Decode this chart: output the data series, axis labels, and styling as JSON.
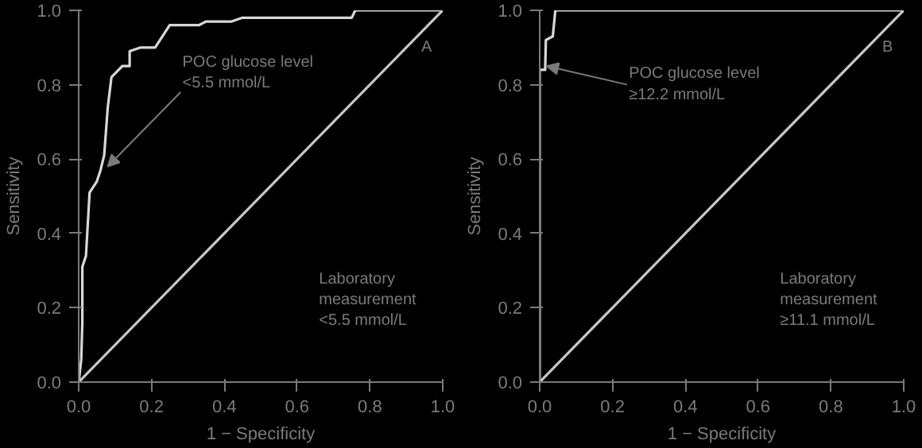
{
  "chart_data": [
    {
      "type": "line",
      "xlabel": "1 − Specificity",
      "ylabel": "Sensitivity",
      "xlim": [
        0,
        1
      ],
      "ylim": [
        0,
        1
      ],
      "xticks": [
        {
          "value": 0,
          "label": "0.0"
        },
        {
          "value": 0.2,
          "label": "0.2"
        },
        {
          "value": 0.4,
          "label": "0.4"
        },
        {
          "value": 0.6,
          "label": "0.6"
        },
        {
          "value": 0.8,
          "label": "0.8"
        },
        {
          "value": 1,
          "label": "1.0"
        }
      ],
      "yticks": [
        {
          "value": 0,
          "label": "0.0"
        },
        {
          "value": 0.2,
          "label": "0.2"
        },
        {
          "value": 0.4,
          "label": "0.4"
        },
        {
          "value": 0.6,
          "label": "0.6"
        },
        {
          "value": 0.8,
          "label": "0.8"
        },
        {
          "value": 1,
          "label": "1.0"
        }
      ],
      "grid": false,
      "marker": "none",
      "line_style": "solid",
      "series": [
        {
          "color": "#d8d8d8",
          "x": [
            0,
            0.007,
            0.01,
            0.01,
            0.02,
            0.03,
            0.05,
            0.06,
            0.07,
            0.08,
            0.09,
            0.12,
            0.14,
            0.14,
            0.17,
            0.21,
            0.25,
            0.33,
            0.35,
            0.42,
            0.45,
            0.75,
            0.76,
            1
          ],
          "values": [
            0,
            0.06,
            0.16,
            0.31,
            0.34,
            0.51,
            0.54,
            0.57,
            0.61,
            0.74,
            0.82,
            0.85,
            0.85,
            0.89,
            0.9,
            0.9,
            0.96,
            0.96,
            0.97,
            0.97,
            0.98,
            0.98,
            1,
            1
          ]
        },
        {
          "type": "line",
          "color": "#c8c8c8",
          "x": [
            0,
            1
          ],
          "values": [
            0,
            1
          ]
        }
      ],
      "annotations": [
        {
          "text": "POC glucose level\n<5.5 mmol/L",
          "x": 0.08,
          "y": 0.58
        },
        "Laboratory\nmeasurement\n<5.5 mmol/L",
        "A"
      ]
    },
    {
      "type": "line",
      "xlabel": "1 − Specificity",
      "ylabel": "Sensitivity",
      "xlim": [
        0,
        1
      ],
      "ylim": [
        0,
        1
      ],
      "xticks": [
        {
          "value": 0,
          "label": "0.0"
        },
        {
          "value": 0.2,
          "label": "0.2"
        },
        {
          "value": 0.4,
          "label": "0.4"
        },
        {
          "value": 0.6,
          "label": "0.6"
        },
        {
          "value": 0.8,
          "label": "0.8"
        },
        {
          "value": 1,
          "label": "1.0"
        }
      ],
      "yticks": [
        {
          "value": 0,
          "label": "0.0"
        },
        {
          "value": 0.2,
          "label": "0.2"
        },
        {
          "value": 0.4,
          "label": "0.4"
        },
        {
          "value": 0.6,
          "label": "0.6"
        },
        {
          "value": 0.8,
          "label": "0.8"
        },
        {
          "value": 1,
          "label": "1.0"
        }
      ],
      "grid": false,
      "marker": "none",
      "line_style": "solid",
      "series": [
        {
          "color": "#d8d8d8",
          "x": [
            0,
            0,
            0.015,
            0.017,
            0.036,
            0.043,
            1
          ],
          "values": [
            0,
            0.84,
            0.84,
            0.92,
            0.93,
            1,
            1
          ]
        },
        {
          "type": "line",
          "color": "#c8c8c8",
          "x": [
            0,
            1
          ],
          "values": [
            0,
            1
          ]
        }
      ],
      "annotations": [
        {
          "text": "POC glucose level\n≥12.2 mmol/L",
          "x": 0.02,
          "y": 0.85
        },
        "Laboratory\nmeasurement\n≥11.1 mmol/L",
        "B"
      ]
    }
  ]
}
